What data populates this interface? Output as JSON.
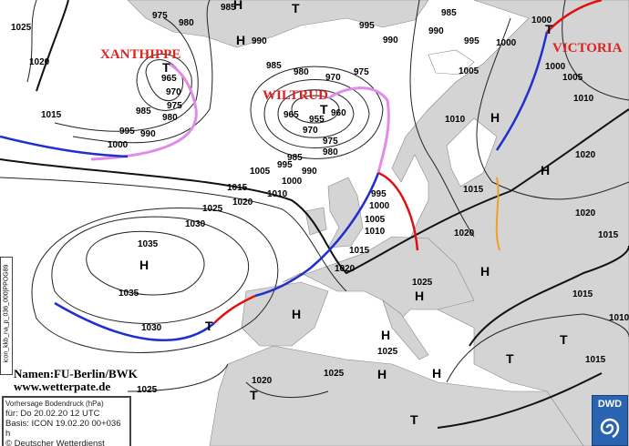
{
  "map": {
    "labels": [
      "1025",
      "975",
      "980",
      "985",
      "990",
      "995",
      "990",
      "990",
      "985",
      "995",
      "1000",
      "1000",
      "1000",
      "1005",
      "1005",
      "1010",
      "1010",
      "1020",
      "1015",
      "1020",
      "1015",
      "1020",
      "1025",
      "1015",
      "1010",
      "1015",
      "1020",
      "965",
      "970",
      "975",
      "985",
      "980",
      "990",
      "995",
      "1000",
      "1015",
      "985",
      "980",
      "970",
      "975",
      "965",
      "955",
      "960",
      "970",
      "975",
      "980",
      "985",
      "990",
      "995",
      "1000",
      "1005",
      "1010",
      "1015",
      "1020",
      "1025",
      "1030",
      "1035",
      "1035",
      "1030",
      "995",
      "1000",
      "1005",
      "1010",
      "1015",
      "1020",
      "1025",
      "1025",
      "1020",
      "1025"
    ],
    "centers": [
      "H",
      "T",
      "H",
      "T",
      "H",
      "H",
      "H",
      "H",
      "T",
      "T",
      "T",
      "T",
      "H",
      "H",
      "T",
      "H",
      "T",
      "H",
      "H",
      "T"
    ],
    "systems": [
      "XANTHIPPE",
      "WILTRUD",
      "VICTORIA"
    ]
  },
  "credit": {
    "names": "Namen:FU-Berlin/BWK",
    "url": "www.wetterpate.de"
  },
  "info": {
    "title": "Vorhersage Bodendruck (hPa)",
    "valid": "für:  Do 20.02.20  12 UTC",
    "basis": "Basis: ICON  19.02.20 00+036 h",
    "copyright": "© Deutscher Wetterdienst"
  },
  "product_code": "icon_kkb_na_p_036_000|PPOG89",
  "logo": {
    "text": "DWD"
  },
  "colors": {
    "land": "#d4d4d4",
    "sea": "#ffffff",
    "cold_front": "#1f2fd0",
    "warm_front": "#e01010",
    "occlusion": "#e08ce8",
    "trough": "#f0a020",
    "system_name": "#d22222"
  }
}
